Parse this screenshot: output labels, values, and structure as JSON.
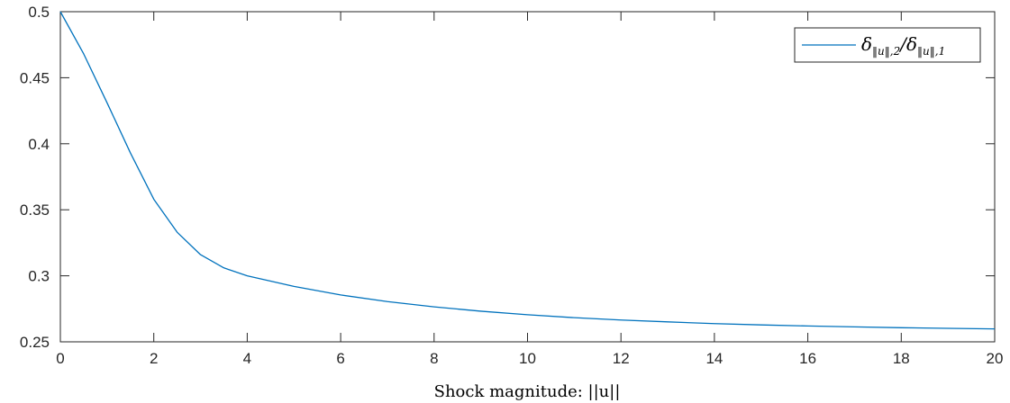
{
  "chart_data": {
    "type": "line",
    "title": "",
    "xlabel": "Shock magnitude: ||u||",
    "ylabel": "",
    "xlim": [
      0,
      20
    ],
    "ylim": [
      0.25,
      0.5
    ],
    "xticks": [
      0,
      2,
      4,
      6,
      8,
      10,
      12,
      14,
      16,
      18,
      20
    ],
    "xtick_labels": [
      "0",
      "2",
      "4",
      "6",
      "8",
      "10",
      "12",
      "14",
      "16",
      "18",
      "20"
    ],
    "yticks": [
      0.25,
      0.3,
      0.35,
      0.4,
      0.45,
      0.5
    ],
    "ytick_labels": [
      "0.25",
      "0.3",
      "0.35",
      "0.4",
      "0.45",
      "0.5"
    ],
    "grid": false,
    "legend_position": "top-right",
    "series": [
      {
        "name": "δ_{||u||,2}/δ_{||u||,1}",
        "legend": {
          "main1": "δ",
          "sub1": "‖u‖,2",
          "slash": "/",
          "main2": "δ",
          "sub2": "‖u‖,1"
        },
        "color": "#0072BD",
        "x": [
          0,
          0.5,
          1,
          1.5,
          2,
          2.5,
          3,
          3.5,
          4,
          4.5,
          5,
          6,
          7,
          8,
          9,
          10,
          11,
          12,
          13,
          14,
          15,
          16,
          17,
          18,
          19,
          20
        ],
        "y": [
          0.5,
          0.468,
          0.431,
          0.393,
          0.358,
          0.333,
          0.316,
          0.306,
          0.3,
          0.296,
          0.292,
          0.2855,
          0.2805,
          0.2765,
          0.2732,
          0.2705,
          0.2683,
          0.2665,
          0.2651,
          0.2638,
          0.2628,
          0.262,
          0.2613,
          0.2607,
          0.2602,
          0.2598
        ]
      }
    ]
  }
}
